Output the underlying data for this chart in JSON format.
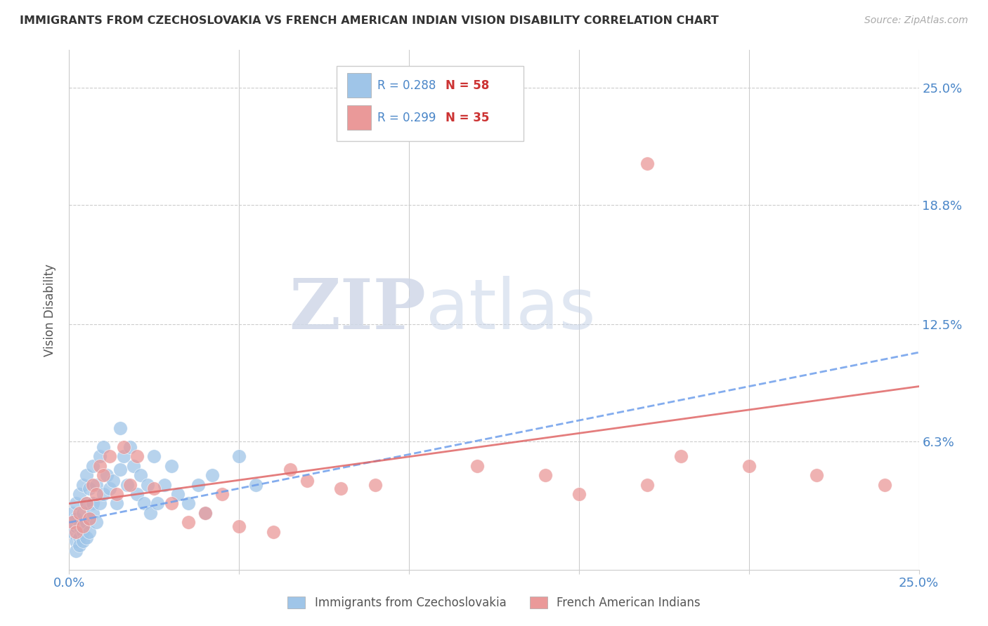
{
  "title": "IMMIGRANTS FROM CZECHOSLOVAKIA VS FRENCH AMERICAN INDIAN VISION DISABILITY CORRELATION CHART",
  "source": "Source: ZipAtlas.com",
  "ylabel": "Vision Disability",
  "ytick_labels": [
    "25.0%",
    "18.8%",
    "12.5%",
    "6.3%"
  ],
  "ytick_values": [
    0.25,
    0.188,
    0.125,
    0.063
  ],
  "xlim": [
    0.0,
    0.25
  ],
  "ylim": [
    -0.005,
    0.27
  ],
  "legend1_r": "R = 0.288",
  "legend1_n": "N = 58",
  "legend2_r": "R = 0.299",
  "legend2_n": "N = 35",
  "blue_color": "#9fc5e8",
  "pink_color": "#ea9999",
  "blue_line_color": "#6d9eeb",
  "pink_line_color": "#e06666",
  "watermark_zip": "ZIP",
  "watermark_atlas": "atlas",
  "blue_scatter_x": [
    0.001,
    0.001,
    0.001,
    0.002,
    0.002,
    0.002,
    0.002,
    0.002,
    0.003,
    0.003,
    0.003,
    0.003,
    0.004,
    0.004,
    0.004,
    0.004,
    0.005,
    0.005,
    0.005,
    0.005,
    0.006,
    0.006,
    0.006,
    0.007,
    0.007,
    0.007,
    0.008,
    0.008,
    0.009,
    0.009,
    0.01,
    0.01,
    0.011,
    0.012,
    0.013,
    0.014,
    0.015,
    0.015,
    0.016,
    0.017,
    0.018,
    0.019,
    0.02,
    0.021,
    0.022,
    0.023,
    0.024,
    0.025,
    0.026,
    0.028,
    0.03,
    0.032,
    0.035,
    0.038,
    0.04,
    0.042,
    0.05,
    0.055
  ],
  "blue_scatter_y": [
    0.02,
    0.025,
    0.015,
    0.018,
    0.022,
    0.01,
    0.005,
    0.03,
    0.012,
    0.008,
    0.035,
    0.018,
    0.015,
    0.025,
    0.01,
    0.04,
    0.02,
    0.03,
    0.012,
    0.045,
    0.038,
    0.022,
    0.015,
    0.03,
    0.025,
    0.05,
    0.04,
    0.02,
    0.055,
    0.03,
    0.06,
    0.035,
    0.045,
    0.038,
    0.042,
    0.03,
    0.07,
    0.048,
    0.055,
    0.04,
    0.06,
    0.05,
    0.035,
    0.045,
    0.03,
    0.04,
    0.025,
    0.055,
    0.03,
    0.04,
    0.05,
    0.035,
    0.03,
    0.04,
    0.025,
    0.045,
    0.055,
    0.04
  ],
  "pink_scatter_x": [
    0.001,
    0.002,
    0.003,
    0.004,
    0.005,
    0.006,
    0.007,
    0.008,
    0.009,
    0.01,
    0.012,
    0.014,
    0.016,
    0.018,
    0.02,
    0.025,
    0.03,
    0.035,
    0.04,
    0.045,
    0.05,
    0.06,
    0.065,
    0.07,
    0.08,
    0.09,
    0.12,
    0.14,
    0.15,
    0.17,
    0.18,
    0.2,
    0.22,
    0.24,
    0.17
  ],
  "pink_scatter_y": [
    0.02,
    0.015,
    0.025,
    0.018,
    0.03,
    0.022,
    0.04,
    0.035,
    0.05,
    0.045,
    0.055,
    0.035,
    0.06,
    0.04,
    0.055,
    0.038,
    0.03,
    0.02,
    0.025,
    0.035,
    0.018,
    0.015,
    0.048,
    0.042,
    0.038,
    0.04,
    0.05,
    0.045,
    0.035,
    0.04,
    0.055,
    0.05,
    0.045,
    0.04,
    0.21
  ],
  "blue_line_x0": 0.0,
  "blue_line_y0": 0.02,
  "blue_line_x1": 0.25,
  "blue_line_y1": 0.11,
  "pink_line_x0": 0.0,
  "pink_line_y0": 0.03,
  "pink_line_x1": 0.25,
  "pink_line_y1": 0.092
}
